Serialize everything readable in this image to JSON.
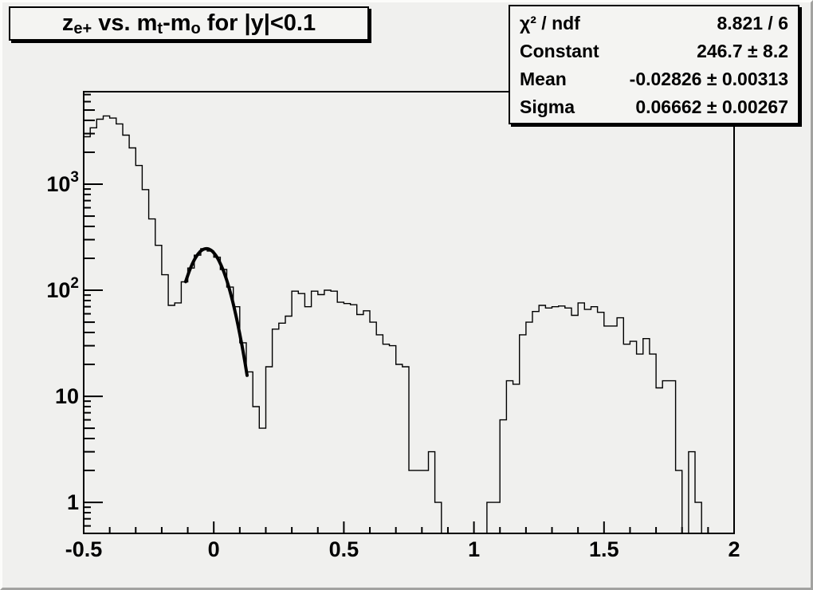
{
  "canvas": {
    "background": "#f0f0ee",
    "pave_fill": "#f4f4f2",
    "line_color": "#000000",
    "bevel_light": "#fcfcfa",
    "bevel_dark": "#a2a2a0"
  },
  "title": {
    "segments": [
      {
        "text": "z"
      },
      {
        "text": "e+",
        "style": "sub"
      },
      {
        "text": " vs. m"
      },
      {
        "text": "t",
        "style": "sub"
      },
      {
        "text": "-m"
      },
      {
        "text": "o",
        "style": "sub"
      },
      {
        "text": " for |y|<0.1"
      }
    ]
  },
  "stats": {
    "rows": [
      {
        "label": "χ² / ndf",
        "value": "8.821 / 6"
      },
      {
        "label": "Constant",
        "value": "246.7 ± 8.2"
      },
      {
        "label": "Mean",
        "value": "-0.02826 ± 0.00313"
      },
      {
        "label": "Sigma",
        "value": "0.06662 ± 0.00267"
      }
    ]
  },
  "chart_data": {
    "type": "bar",
    "title": "z_e+ vs. m_t-m_o for |y|<0.1",
    "xlabel": "",
    "ylabel": "",
    "grid": false,
    "legend": null,
    "y_scale": "log",
    "x_min": -0.5,
    "x_max": 2.0,
    "y_min": 0.51,
    "y_max": 7450,
    "bin_start": -0.5,
    "bin_width": 0.025,
    "values": [
      2800,
      3400,
      4100,
      4400,
      4200,
      3700,
      2900,
      2200,
      1500,
      890,
      470,
      265,
      140,
      72,
      76,
      120,
      162,
      214,
      246,
      234,
      205,
      157,
      107,
      70,
      32,
      17,
      8,
      5,
      19,
      43,
      49,
      57,
      98,
      93,
      70,
      98,
      91,
      100,
      98,
      77,
      75,
      73,
      59,
      64,
      50,
      38,
      31,
      30,
      20,
      19,
      2,
      2,
      2,
      3,
      1,
      0,
      0,
      0,
      0,
      0,
      0,
      0,
      1,
      1,
      6,
      14,
      13,
      38,
      50,
      63,
      72,
      68,
      70,
      71,
      68,
      58,
      76,
      66,
      70,
      62,
      46,
      46,
      55,
      31,
      33,
      25,
      35,
      25,
      12,
      14,
      14,
      2,
      0,
      3,
      1,
      0,
      0,
      0,
      0,
      0
    ],
    "x_ticks": [
      {
        "v": -0.5,
        "label": "-0.5"
      },
      {
        "v": 0,
        "label": "0"
      },
      {
        "v": 0.5,
        "label": "0.5"
      },
      {
        "v": 1,
        "label": "1"
      },
      {
        "v": 1.5,
        "label": "1.5"
      },
      {
        "v": 2,
        "label": "2"
      }
    ],
    "x_minor_step": 0.1,
    "y_ticks": [
      {
        "v": 1,
        "mantissa": "1",
        "exp": ""
      },
      {
        "v": 10,
        "mantissa": "10",
        "exp": ""
      },
      {
        "v": 100,
        "mantissa": "10",
        "exp": "2"
      },
      {
        "v": 1000,
        "mantissa": "10",
        "exp": "3"
      }
    ],
    "fit": {
      "model": "gaussian",
      "constant": 246.7,
      "mean": -0.02826,
      "sigma": 0.06662,
      "chi2": 8.821,
      "ndf": 6,
      "draw_range": [
        -0.108,
        0.128
      ]
    }
  }
}
